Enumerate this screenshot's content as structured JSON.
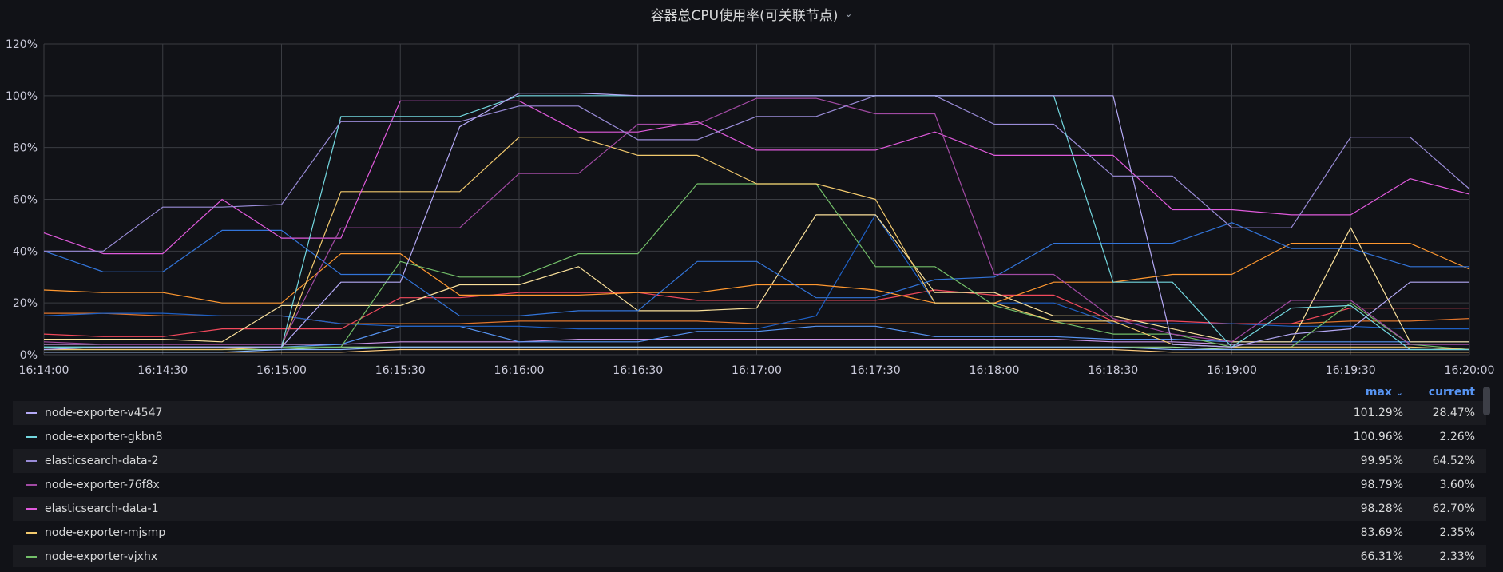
{
  "panel": {
    "title": "容器总CPU使用率(可关联节点)"
  },
  "legend_headers": {
    "max": "max",
    "current": "current"
  },
  "chart_data": {
    "type": "line",
    "title": "容器总CPU使用率(可关联节点)",
    "x": [
      "16:14:00",
      "16:14:15",
      "16:14:30",
      "16:14:45",
      "16:15:00",
      "16:15:15",
      "16:15:30",
      "16:15:45",
      "16:16:00",
      "16:16:15",
      "16:16:30",
      "16:16:45",
      "16:17:00",
      "16:17:15",
      "16:17:30",
      "16:17:45",
      "16:18:00",
      "16:18:15",
      "16:18:30",
      "16:18:45",
      "16:19:00",
      "16:19:15",
      "16:19:30",
      "16:19:45",
      "16:20:00"
    ],
    "x_ticks": [
      "16:14:00",
      "16:14:30",
      "16:15:00",
      "16:15:30",
      "16:16:00",
      "16:16:30",
      "16:17:00",
      "16:17:30",
      "16:18:00",
      "16:18:30",
      "16:19:00",
      "16:19:30",
      "16:20:00"
    ],
    "y_ticks": [
      "0%",
      "20%",
      "40%",
      "60%",
      "80%",
      "100%",
      "120%"
    ],
    "ylim": [
      0,
      120
    ],
    "grid": true,
    "legend_position": "bottom",
    "series": [
      {
        "name": "node-exporter-v4547",
        "color": "#b4a9f5",
        "max": "101.29%",
        "current": "28.47%",
        "values": [
          2,
          3,
          3,
          3,
          3,
          28,
          28,
          88,
          101,
          101,
          100,
          100,
          100,
          100,
          100,
          100,
          100,
          100,
          100,
          4,
          3,
          8,
          10,
          28,
          28
        ]
      },
      {
        "name": "node-exporter-gkbn8",
        "color": "#73d7df",
        "max": "100.96%",
        "current": "2.26%",
        "values": [
          3,
          3,
          3,
          3,
          3,
          92,
          92,
          92,
          100,
          100,
          100,
          100,
          100,
          100,
          100,
          100,
          100,
          100,
          28,
          28,
          3,
          18,
          19,
          2,
          2
        ]
      },
      {
        "name": "elasticsearch-data-2",
        "color": "#9a8cd8",
        "max": "99.95%",
        "current": "64.52%",
        "values": [
          40,
          40,
          57,
          57,
          58,
          90,
          90,
          90,
          96,
          96,
          83,
          83,
          92,
          92,
          100,
          100,
          89,
          89,
          69,
          69,
          49,
          49,
          84,
          84,
          64
        ]
      },
      {
        "name": "node-exporter-76f8x",
        "color": "#a14aa3",
        "max": "98.79%",
        "current": "3.60%",
        "values": [
          5,
          4,
          4,
          4,
          4,
          49,
          49,
          49,
          70,
          70,
          89,
          89,
          99,
          99,
          93,
          93,
          31,
          31,
          14,
          8,
          5,
          21,
          21,
          4,
          4
        ]
      },
      {
        "name": "elasticsearch-data-1",
        "color": "#e05adc",
        "max": "98.28%",
        "current": "62.70%",
        "values": [
          47,
          39,
          39,
          60,
          45,
          45,
          98,
          98,
          98,
          86,
          86,
          90,
          79,
          79,
          79,
          86,
          77,
          77,
          77,
          56,
          56,
          54,
          54,
          68,
          62
        ]
      },
      {
        "name": "node-exporter-mjsmp",
        "color": "#f2c96d",
        "max": "83.69%",
        "current": "2.35%",
        "values": [
          2,
          2,
          2,
          2,
          3,
          63,
          63,
          63,
          84,
          84,
          77,
          77,
          66,
          66,
          60,
          20,
          20,
          13,
          13,
          4,
          3,
          3,
          3,
          3,
          2
        ]
      },
      {
        "name": "node-exporter-vjxhx",
        "color": "#73bf69",
        "max": "66.31%",
        "current": "2.33%",
        "values": [
          3,
          3,
          3,
          3,
          3,
          3,
          36,
          30,
          30,
          39,
          39,
          66,
          66,
          66,
          34,
          34,
          19,
          13,
          8,
          8,
          3,
          3,
          20,
          4,
          2
        ]
      },
      {
        "color": "#3274d9",
        "values": [
          40,
          32,
          32,
          48,
          48,
          31,
          31,
          15,
          15,
          17,
          17,
          36,
          36,
          22,
          22,
          29,
          30,
          43,
          43,
          43,
          51,
          41,
          41,
          34,
          34
        ]
      },
      {
        "color": "#ff9830",
        "values": [
          25,
          24,
          24,
          20,
          20,
          39,
          39,
          23,
          23,
          23,
          24,
          24,
          27,
          27,
          25,
          20,
          20,
          28,
          28,
          31,
          31,
          43,
          43,
          43,
          33
        ]
      },
      {
        "color": "#fae09a",
        "values": [
          6,
          6,
          6,
          5,
          19,
          19,
          19,
          27,
          27,
          34,
          17,
          17,
          18,
          54,
          54,
          24,
          24,
          15,
          15,
          10,
          5,
          5,
          49,
          5,
          5
        ]
      },
      {
        "color": "#1f60c4",
        "values": [
          15,
          16,
          16,
          15,
          15,
          12,
          11,
          11,
          11,
          10,
          10,
          10,
          10,
          15,
          54,
          20,
          20,
          20,
          12,
          12,
          12,
          11,
          11,
          10,
          10
        ]
      },
      {
        "color": "#f2495c",
        "values": [
          8,
          7,
          7,
          10,
          10,
          10,
          22,
          22,
          24,
          24,
          24,
          21,
          21,
          21,
          21,
          25,
          23,
          23,
          13,
          13,
          12,
          12,
          18,
          18,
          18
        ]
      },
      {
        "color": "#e0752d",
        "values": [
          16,
          16,
          15,
          15,
          15,
          12,
          12,
          12,
          13,
          13,
          13,
          13,
          12,
          12,
          12,
          12,
          12,
          12,
          12,
          12,
          12,
          12,
          13,
          13,
          14
        ]
      },
      {
        "color": "#5794f2",
        "values": [
          3,
          3,
          3,
          3,
          3,
          4,
          11,
          11,
          5,
          5,
          5,
          9,
          9,
          11,
          11,
          7,
          7,
          7,
          6,
          6,
          5,
          5,
          5,
          5,
          5
        ]
      },
      {
        "color": "#8ab8ff",
        "values": [
          1,
          1,
          1,
          1,
          2,
          2,
          3,
          3,
          3,
          3,
          3,
          3,
          3,
          3,
          3,
          3,
          3,
          3,
          3,
          2,
          2,
          2,
          2,
          2,
          2
        ]
      },
      {
        "color": "#ca95e5",
        "values": [
          4,
          4,
          4,
          4,
          4,
          4,
          5,
          5,
          5,
          6,
          6,
          6,
          6,
          6,
          6,
          6,
          6,
          6,
          5,
          5,
          4,
          4,
          4,
          4,
          4
        ]
      },
      {
        "color": "#96d98d",
        "values": [
          2,
          2,
          2,
          2,
          2,
          3,
          3,
          3,
          3,
          3,
          3,
          3,
          3,
          3,
          3,
          3,
          3,
          3,
          3,
          3,
          2,
          2,
          2,
          2,
          2
        ]
      },
      {
        "color": "#ffcb7d",
        "values": [
          1,
          1,
          1,
          1,
          1,
          1,
          2,
          2,
          2,
          2,
          2,
          2,
          2,
          2,
          2,
          2,
          2,
          2,
          2,
          1,
          1,
          1,
          1,
          1,
          1
        ]
      }
    ]
  }
}
